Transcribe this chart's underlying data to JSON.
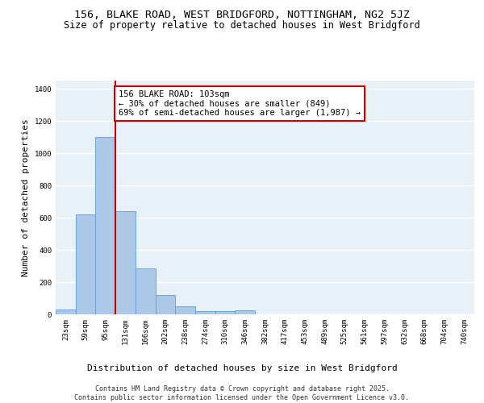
{
  "title_line1": "156, BLAKE ROAD, WEST BRIDGFORD, NOTTINGHAM, NG2 5JZ",
  "title_line2": "Size of property relative to detached houses in West Bridgford",
  "xlabel": "Distribution of detached houses by size in West Bridgford",
  "ylabel": "Number of detached properties",
  "categories": [
    "23sqm",
    "59sqm",
    "95sqm",
    "131sqm",
    "166sqm",
    "202sqm",
    "238sqm",
    "274sqm",
    "310sqm",
    "346sqm",
    "382sqm",
    "417sqm",
    "453sqm",
    "489sqm",
    "525sqm",
    "561sqm",
    "597sqm",
    "632sqm",
    "668sqm",
    "704sqm",
    "740sqm"
  ],
  "values": [
    32,
    620,
    1100,
    640,
    285,
    120,
    50,
    22,
    18,
    25,
    0,
    0,
    0,
    0,
    0,
    0,
    0,
    0,
    0,
    0,
    0
  ],
  "bar_color": "#adc8e6",
  "bar_edge_color": "#5a9fd4",
  "bg_color": "#e8f0f8",
  "grid_color": "#ffffff",
  "vline_color": "#cc0000",
  "annotation_text": "156 BLAKE ROAD: 103sqm\n← 30% of detached houses are smaller (849)\n69% of semi-detached houses are larger (1,987) →",
  "annotation_box_color": "#ffffff",
  "annotation_box_edge": "#cc0000",
  "ylim": [
    0,
    1450
  ],
  "yticks": [
    0,
    200,
    400,
    600,
    800,
    1000,
    1200,
    1400
  ],
  "footer": "Contains HM Land Registry data © Crown copyright and database right 2025.\nContains public sector information licensed under the Open Government Licence v3.0.",
  "title_fontsize": 9.5,
  "subtitle_fontsize": 8.5,
  "axis_label_fontsize": 8,
  "tick_fontsize": 6.5,
  "annotation_fontsize": 7.5,
  "footer_fontsize": 6.0
}
